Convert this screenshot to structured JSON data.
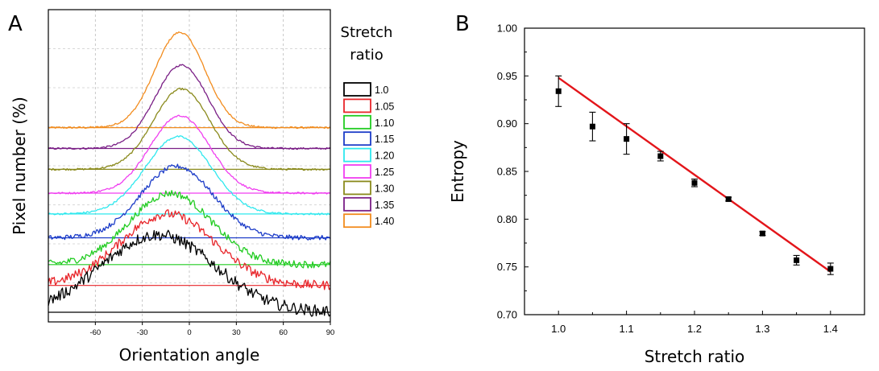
{
  "panels": {
    "a_letter": "A",
    "b_letter": "B"
  },
  "chart_data": [
    {
      "type": "line",
      "panel": "A",
      "xlabel": "Orientation angle",
      "ylabel": "Pixel number (%)",
      "xlim": [
        -90,
        90
      ],
      "xticks": [
        -60,
        -30,
        0,
        30,
        60,
        90
      ],
      "grid": true,
      "y_scale": "arbitrary, vertically offset curves",
      "legend": {
        "title": "Stretch ratio",
        "placement": "right"
      },
      "series": [
        {
          "name": "1.0",
          "color": "#000000",
          "baseline": 0.0,
          "peak_x": -20,
          "peak_height": 0.26,
          "width": 36
        },
        {
          "name": "1.05",
          "color": "#e8252a",
          "baseline": 0.09,
          "peak_x": -14,
          "peak_height": 0.24,
          "width": 30
        },
        {
          "name": "1.10",
          "color": "#22cc22",
          "baseline": 0.16,
          "peak_x": -12,
          "peak_height": 0.24,
          "width": 26
        },
        {
          "name": "1.15",
          "color": "#1c3cc8",
          "baseline": 0.25,
          "peak_x": -8,
          "peak_height": 0.24,
          "width": 23
        },
        {
          "name": "1.20",
          "color": "#2ee8ee",
          "baseline": 0.33,
          "peak_x": -7,
          "peak_height": 0.26,
          "width": 21
        },
        {
          "name": "1.25",
          "color": "#f03ef0",
          "baseline": 0.4,
          "peak_x": -6,
          "peak_height": 0.26,
          "width": 19
        },
        {
          "name": "1.30",
          "color": "#8a8a1c",
          "baseline": 0.48,
          "peak_x": -5,
          "peak_height": 0.27,
          "width": 18
        },
        {
          "name": "1.35",
          "color": "#7a1f86",
          "baseline": 0.55,
          "peak_x": -5,
          "peak_height": 0.28,
          "width": 17
        },
        {
          "name": "1.40",
          "color": "#f28c1e",
          "baseline": 0.62,
          "peak_x": -6,
          "peak_height": 0.32,
          "width": 16
        }
      ]
    },
    {
      "type": "scatter",
      "panel": "B",
      "xlabel": "Stretch ratio",
      "ylabel": "Entropy",
      "xlim": [
        0.95,
        1.45
      ],
      "ylim": [
        0.7,
        1.0
      ],
      "xticks": [
        "1.0",
        "1.1",
        "1.2",
        "1.3",
        "1.4"
      ],
      "yticks": [
        "0.70",
        "0.75",
        "0.80",
        "0.85",
        "0.90",
        "0.95",
        "1.00"
      ],
      "grid": false,
      "series": [
        {
          "color": "#000000",
          "x": [
            1.0,
            1.05,
            1.1,
            1.15,
            1.2,
            1.25,
            1.3,
            1.35,
            1.4
          ],
          "y": [
            0.934,
            0.897,
            0.884,
            0.866,
            0.838,
            0.821,
            0.785,
            0.757,
            0.748
          ],
          "err": [
            0.016,
            0.015,
            0.016,
            0.005,
            0.004,
            0.002,
            0.002,
            0.005,
            0.006
          ]
        }
      ],
      "fit_line": {
        "color": "#e3151a",
        "x": [
          1.0,
          1.4
        ],
        "y": [
          0.948,
          0.745
        ]
      }
    }
  ]
}
